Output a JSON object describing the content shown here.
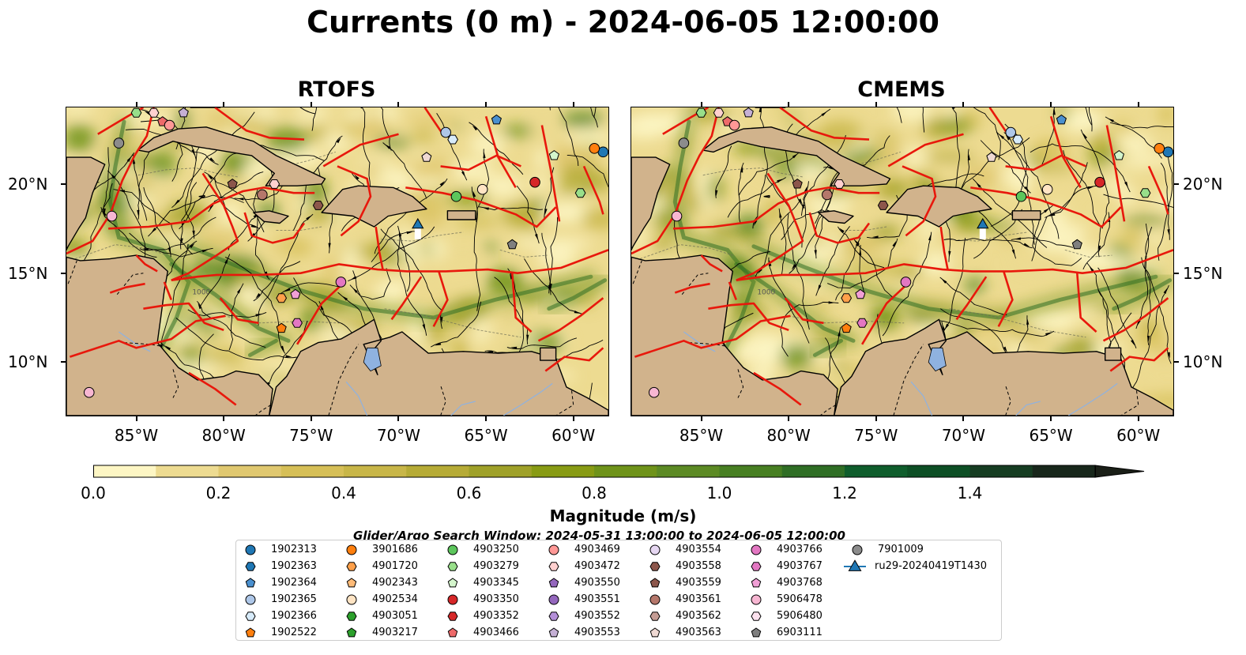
{
  "figure": {
    "title": "Currents (0 m) - 2024-06-05 12:00:00"
  },
  "panels": [
    {
      "title": "RTOFS"
    },
    {
      "title": "CMEMS"
    }
  ],
  "axes": {
    "lon_labels": [
      "85°W",
      "80°W",
      "75°W",
      "70°W",
      "65°W",
      "60°W"
    ],
    "lat_labels": [
      "20°N",
      "15°N",
      "10°N"
    ],
    "lon_range": [
      -89,
      -58
    ],
    "lat_range": [
      7,
      24.3
    ],
    "isobath_label": "1000"
  },
  "colorbar": {
    "title": "Magnitude (m/s)",
    "tick_labels": [
      "0.0",
      "0.2",
      "0.4",
      "0.6",
      "0.8",
      "1.0",
      "1.2",
      "1.4"
    ],
    "range": [
      0,
      1.6
    ],
    "step": 0.1,
    "extend": "max",
    "colors": [
      "#fdf6c4",
      "#eddb91",
      "#e0c870",
      "#d6bf57",
      "#c8b648",
      "#b6ab36",
      "#9fa129",
      "#889b14",
      "#6f931a",
      "#5c8a24",
      "#477f22",
      "#2f6e25",
      "#0f5d2c",
      "#0d4f25",
      "#163d22",
      "#18271b",
      "#1a1f17"
    ]
  },
  "search_window": "Glider/Argo Search Window: 2024-05-31 13:00:00 to 2024-06-05 12:00:00",
  "legend": [
    {
      "label": "1902313",
      "marker": "circle",
      "color": "#1f77b4"
    },
    {
      "label": "1902363",
      "marker": "hexagon",
      "color": "#1f77b4"
    },
    {
      "label": "1902364",
      "marker": "pentagon",
      "color": "#4a90cf"
    },
    {
      "label": "1902365",
      "marker": "circle",
      "color": "#aec7e8"
    },
    {
      "label": "1902366",
      "marker": "hexagon",
      "color": "#d7ebfa"
    },
    {
      "label": "1902522",
      "marker": "pentagon",
      "color": "#ff7f0e"
    },
    {
      "label": "3901686",
      "marker": "circle",
      "color": "#ff7f0e"
    },
    {
      "label": "4901720",
      "marker": "hexagon",
      "color": "#ffa04a"
    },
    {
      "label": "4902343",
      "marker": "pentagon",
      "color": "#ffbb78"
    },
    {
      "label": "4902534",
      "marker": "circle",
      "color": "#ffe4c4"
    },
    {
      "label": "4903051",
      "marker": "hexagon",
      "color": "#2ca02c"
    },
    {
      "label": "4903217",
      "marker": "pentagon",
      "color": "#2ca02c"
    },
    {
      "label": "4903250",
      "marker": "circle",
      "color": "#5cc65c"
    },
    {
      "label": "4903279",
      "marker": "hexagon",
      "color": "#98df8a"
    },
    {
      "label": "4903345",
      "marker": "pentagon",
      "color": "#d4f5cc"
    },
    {
      "label": "4903350",
      "marker": "circle",
      "color": "#d62728"
    },
    {
      "label": "4903352",
      "marker": "hexagon",
      "color": "#d62728"
    },
    {
      "label": "4903466",
      "marker": "pentagon",
      "color": "#ee6a6a"
    },
    {
      "label": "4903469",
      "marker": "circle",
      "color": "#ff9896"
    },
    {
      "label": "4903472",
      "marker": "hexagon",
      "color": "#ffd0cf"
    },
    {
      "label": "4903550",
      "marker": "pentagon",
      "color": "#9467bd"
    },
    {
      "label": "4903551",
      "marker": "circle",
      "color": "#9467bd"
    },
    {
      "label": "4903552",
      "marker": "hexagon",
      "color": "#b48fd8"
    },
    {
      "label": "4903553",
      "marker": "pentagon",
      "color": "#c5b0d5"
    },
    {
      "label": "4903554",
      "marker": "circle",
      "color": "#e6d7f2"
    },
    {
      "label": "4903558",
      "marker": "hexagon",
      "color": "#8c564b"
    },
    {
      "label": "4903559",
      "marker": "pentagon",
      "color": "#8c564b"
    },
    {
      "label": "4903561",
      "marker": "circle",
      "color": "#b5776b"
    },
    {
      "label": "4903562",
      "marker": "hexagon",
      "color": "#c49c94"
    },
    {
      "label": "4903563",
      "marker": "pentagon",
      "color": "#efd9d3"
    },
    {
      "label": "4903766",
      "marker": "circle",
      "color": "#e377c2"
    },
    {
      "label": "4903767",
      "marker": "hexagon",
      "color": "#e377c2"
    },
    {
      "label": "4903768",
      "marker": "pentagon",
      "color": "#f19fd6"
    },
    {
      "label": "5906478",
      "marker": "circle",
      "color": "#f7b6d2"
    },
    {
      "label": "5906480",
      "marker": "hexagon",
      "color": "#fde2ef"
    },
    {
      "label": "6903111",
      "marker": "pentagon",
      "color": "#7f7f7f"
    },
    {
      "label": "7901009",
      "marker": "circle",
      "color": "#8c8c8c"
    },
    {
      "label": "ru29-20240419T1430",
      "marker": "triangle",
      "color": "#1f77b4"
    }
  ],
  "floats_on_map": [
    {
      "id": "1902313",
      "lon": -58.3,
      "lat": 21.8
    },
    {
      "id": "3901686",
      "lon": -58.8,
      "lat": 22.0
    },
    {
      "id": "1902364",
      "lon": -64.4,
      "lat": 23.6
    },
    {
      "id": "1902365",
      "lon": -67.3,
      "lat": 22.9
    },
    {
      "id": "1902366",
      "lon": -66.9,
      "lat": 22.5
    },
    {
      "id": "4903345",
      "lon": -61.1,
      "lat": 21.6
    },
    {
      "id": "4903279",
      "lon": -59.6,
      "lat": 19.5
    },
    {
      "id": "4903350",
      "lon": -62.2,
      "lat": 20.1
    },
    {
      "id": "4903250",
      "lon": -66.7,
      "lat": 19.3
    },
    {
      "id": "4902534",
      "lon": -65.2,
      "lat": 19.7
    },
    {
      "id": "4903563",
      "lon": -68.4,
      "lat": 21.5
    },
    {
      "id": "6903111",
      "lon": -63.5,
      "lat": 16.6
    },
    {
      "id": "7901009",
      "lon": -86.0,
      "lat": 22.3
    },
    {
      "id": "4903559",
      "lon": -79.5,
      "lat": 20.0
    },
    {
      "id": "4903472",
      "lon": -77.1,
      "lat": 20.0
    },
    {
      "id": "4903561",
      "lon": -77.8,
      "lat": 19.4
    },
    {
      "id": "4903558",
      "lon": -74.6,
      "lat": 18.8
    },
    {
      "id": "5906478",
      "lon": -86.4,
      "lat": 18.2
    },
    {
      "id": "4903766",
      "lon": -73.3,
      "lat": 14.5
    },
    {
      "id": "4903768",
      "lon": -75.9,
      "lat": 13.8
    },
    {
      "id": "4901720",
      "lon": -76.7,
      "lat": 13.6
    },
    {
      "id": "1902522",
      "lon": -76.7,
      "lat": 11.9
    },
    {
      "id": "4903767",
      "lon": -75.8,
      "lat": 12.2
    },
    {
      "id": "4903279",
      "lon": -85.0,
      "lat": 24.0
    },
    {
      "id": "4903472",
      "lon": -84.0,
      "lat": 24.0
    },
    {
      "id": "4903553",
      "lon": -82.3,
      "lat": 24.0
    },
    {
      "id": "4903466",
      "lon": -83.5,
      "lat": 23.5
    },
    {
      "id": "4903469",
      "lon": -83.1,
      "lat": 23.3
    },
    {
      "id": "5906478",
      "lon": -87.7,
      "lat": 8.3
    },
    {
      "id": "ru29-20240419T1430",
      "lon": -68.9,
      "lat": 17.7
    }
  ]
}
